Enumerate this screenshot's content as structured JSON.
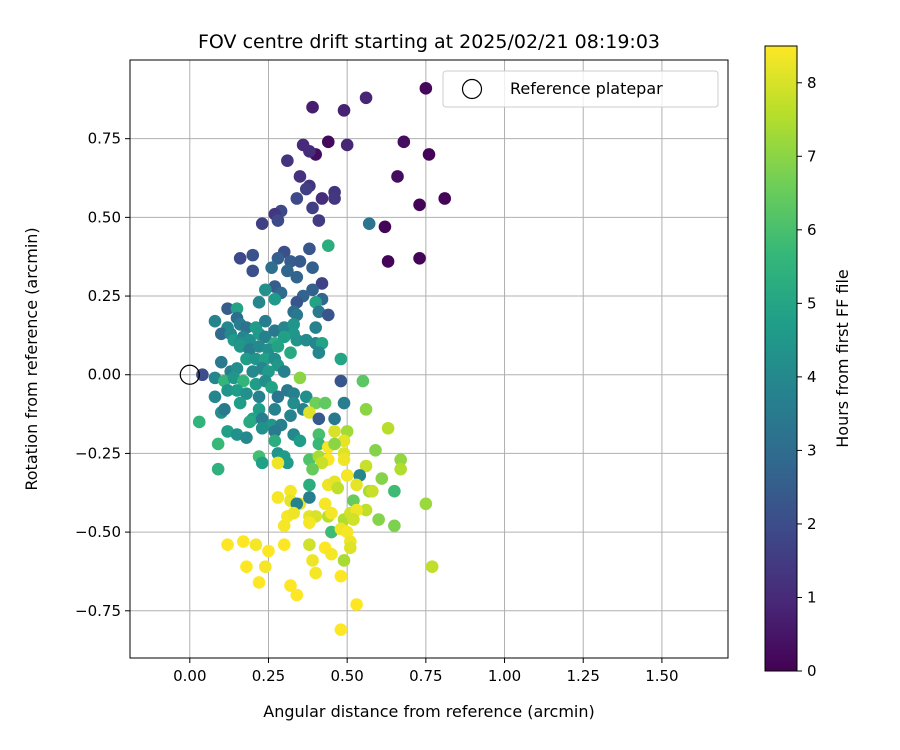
{
  "chart_data": {
    "type": "scatter",
    "title": "FOV centre drift starting at 2025/02/21 08:19:03",
    "xlabel": "Angular distance from reference (arcmin)",
    "ylabel": "Rotation from reference (arcmin)",
    "xlim": [
      -0.19,
      1.71
    ],
    "ylim": [
      -0.9,
      1.0
    ],
    "xticks": [
      0.0,
      0.25,
      0.5,
      0.75,
      1.0,
      1.25,
      1.5
    ],
    "xtick_labels": [
      "0.00",
      "0.25",
      "0.50",
      "0.75",
      "1.00",
      "1.25",
      "1.50"
    ],
    "yticks": [
      -0.75,
      -0.5,
      -0.25,
      0.0,
      0.25,
      0.5,
      0.75
    ],
    "ytick_labels": [
      "−0.75",
      "−0.50",
      "−0.25",
      "0.00",
      "0.25",
      "0.50",
      "0.75"
    ],
    "grid": true,
    "legend": {
      "placement": "top-right",
      "entries": [
        "Reference platepar"
      ]
    },
    "reference_point": {
      "x": 0.0,
      "y": 0.0
    },
    "colorbar": {
      "label": "Hours from first FF file",
      "range": [
        0,
        8.5
      ],
      "ticks": [
        0,
        1,
        2,
        3,
        4,
        5,
        6,
        7,
        8
      ],
      "tick_labels": [
        "0",
        "1",
        "2",
        "3",
        "4",
        "5",
        "6",
        "7",
        "8"
      ],
      "colormap": "viridis",
      "colors": [
        "#440154",
        "#482878",
        "#3e4989",
        "#31688e",
        "#26828e",
        "#1f9e89",
        "#35b779",
        "#6ece58",
        "#b5de2b",
        "#fde725"
      ]
    },
    "points": [
      {
        "x": 0.75,
        "y": 0.91,
        "c": 0.2
      },
      {
        "x": 0.73,
        "y": 0.54,
        "c": 0.1
      },
      {
        "x": 0.81,
        "y": 0.56,
        "c": 0.1
      },
      {
        "x": 0.76,
        "y": 0.7,
        "c": 0.1
      },
      {
        "x": 0.68,
        "y": 0.74,
        "c": 0.3
      },
      {
        "x": 0.66,
        "y": 0.63,
        "c": 0.3
      },
      {
        "x": 0.62,
        "y": 0.47,
        "c": 0.1
      },
      {
        "x": 0.63,
        "y": 0.36,
        "c": 0.1
      },
      {
        "x": 0.73,
        "y": 0.37,
        "c": 0.1
      },
      {
        "x": 0.44,
        "y": 0.74,
        "c": 0.2
      },
      {
        "x": 0.4,
        "y": 0.7,
        "c": 0.3
      },
      {
        "x": 0.39,
        "y": 0.85,
        "c": 0.7
      },
      {
        "x": 0.49,
        "y": 0.84,
        "c": 0.8
      },
      {
        "x": 0.56,
        "y": 0.88,
        "c": 0.9
      },
      {
        "x": 0.5,
        "y": 0.73,
        "c": 0.9
      },
      {
        "x": 0.36,
        "y": 0.73,
        "c": 1.0
      },
      {
        "x": 0.38,
        "y": 0.71,
        "c": 1.1
      },
      {
        "x": 0.31,
        "y": 0.68,
        "c": 1.3
      },
      {
        "x": 0.35,
        "y": 0.63,
        "c": 1.2
      },
      {
        "x": 0.38,
        "y": 0.6,
        "c": 1.3
      },
      {
        "x": 0.42,
        "y": 0.56,
        "c": 1.1
      },
      {
        "x": 0.37,
        "y": 0.59,
        "c": 1.6
      },
      {
        "x": 0.46,
        "y": 0.58,
        "c": 1.3
      },
      {
        "x": 0.46,
        "y": 0.56,
        "c": 1.4
      },
      {
        "x": 0.34,
        "y": 0.56,
        "c": 1.9
      },
      {
        "x": 0.39,
        "y": 0.53,
        "c": 1.6
      },
      {
        "x": 0.41,
        "y": 0.49,
        "c": 1.5
      },
      {
        "x": 0.29,
        "y": 0.52,
        "c": 1.9
      },
      {
        "x": 0.27,
        "y": 0.51,
        "c": 1.4
      },
      {
        "x": 0.23,
        "y": 0.48,
        "c": 1.6
      },
      {
        "x": 0.28,
        "y": 0.49,
        "c": 1.9
      },
      {
        "x": 0.57,
        "y": 0.48,
        "c": 3.3
      },
      {
        "x": 0.3,
        "y": 0.39,
        "c": 2.1
      },
      {
        "x": 0.38,
        "y": 0.4,
        "c": 2.3
      },
      {
        "x": 0.28,
        "y": 0.37,
        "c": 2.6
      },
      {
        "x": 0.32,
        "y": 0.36,
        "c": 2.5
      },
      {
        "x": 0.35,
        "y": 0.36,
        "c": 2.4
      },
      {
        "x": 0.44,
        "y": 0.41,
        "c": 5.3
      },
      {
        "x": 0.2,
        "y": 0.38,
        "c": 2.2
      },
      {
        "x": 0.16,
        "y": 0.37,
        "c": 1.9
      },
      {
        "x": 0.2,
        "y": 0.33,
        "c": 2.1
      },
      {
        "x": 0.26,
        "y": 0.34,
        "c": 3.1
      },
      {
        "x": 0.31,
        "y": 0.33,
        "c": 2.8
      },
      {
        "x": 0.39,
        "y": 0.34,
        "c": 2.6
      },
      {
        "x": 0.34,
        "y": 0.31,
        "c": 2.7
      },
      {
        "x": 0.42,
        "y": 0.29,
        "c": 1.7
      },
      {
        "x": 0.39,
        "y": 0.27,
        "c": 2.6
      },
      {
        "x": 0.27,
        "y": 0.28,
        "c": 2.5
      },
      {
        "x": 0.24,
        "y": 0.27,
        "c": 4.3
      },
      {
        "x": 0.29,
        "y": 0.26,
        "c": 2.9
      },
      {
        "x": 0.36,
        "y": 0.25,
        "c": 2.7
      },
      {
        "x": 0.42,
        "y": 0.24,
        "c": 2.8
      },
      {
        "x": 0.4,
        "y": 0.23,
        "c": 4.9
      },
      {
        "x": 0.34,
        "y": 0.23,
        "c": 2.3
      },
      {
        "x": 0.27,
        "y": 0.24,
        "c": 4.6
      },
      {
        "x": 0.22,
        "y": 0.23,
        "c": 3.9
      },
      {
        "x": 0.33,
        "y": 0.2,
        "c": 3.1
      },
      {
        "x": 0.41,
        "y": 0.2,
        "c": 3.5
      },
      {
        "x": 0.44,
        "y": 0.19,
        "c": 2.3
      },
      {
        "x": 0.34,
        "y": 0.19,
        "c": 3.4
      },
      {
        "x": 0.12,
        "y": 0.21,
        "c": 2.5
      },
      {
        "x": 0.15,
        "y": 0.21,
        "c": 4.9
      },
      {
        "x": 0.15,
        "y": 0.18,
        "c": 3.0
      },
      {
        "x": 0.08,
        "y": 0.17,
        "c": 3.8
      },
      {
        "x": 0.12,
        "y": 0.15,
        "c": 4.0
      },
      {
        "x": 0.16,
        "y": 0.16,
        "c": 3.6
      },
      {
        "x": 0.18,
        "y": 0.15,
        "c": 3.2
      },
      {
        "x": 0.21,
        "y": 0.15,
        "c": 4.7
      },
      {
        "x": 0.24,
        "y": 0.17,
        "c": 3.6
      },
      {
        "x": 0.27,
        "y": 0.14,
        "c": 3.4
      },
      {
        "x": 0.3,
        "y": 0.15,
        "c": 3.9
      },
      {
        "x": 0.33,
        "y": 0.16,
        "c": 4.4
      },
      {
        "x": 0.33,
        "y": 0.13,
        "c": 4.5
      },
      {
        "x": 0.4,
        "y": 0.15,
        "c": 3.8
      },
      {
        "x": 0.1,
        "y": 0.13,
        "c": 2.9
      },
      {
        "x": 0.13,
        "y": 0.13,
        "c": 4.0
      },
      {
        "x": 0.14,
        "y": 0.11,
        "c": 4.6
      },
      {
        "x": 0.17,
        "y": 0.12,
        "c": 3.9
      },
      {
        "x": 0.19,
        "y": 0.11,
        "c": 4.2
      },
      {
        "x": 0.22,
        "y": 0.13,
        "c": 4.6
      },
      {
        "x": 0.24,
        "y": 0.12,
        "c": 3.7
      },
      {
        "x": 0.27,
        "y": 0.1,
        "c": 5.3
      },
      {
        "x": 0.3,
        "y": 0.12,
        "c": 4.8
      },
      {
        "x": 0.34,
        "y": 0.11,
        "c": 4.4
      },
      {
        "x": 0.37,
        "y": 0.11,
        "c": 4.1
      },
      {
        "x": 0.4,
        "y": 0.1,
        "c": 3.9
      },
      {
        "x": 0.42,
        "y": 0.1,
        "c": 4.9
      },
      {
        "x": 0.16,
        "y": 0.1,
        "c": 4.3
      },
      {
        "x": 0.16,
        "y": 0.09,
        "c": 4.5
      },
      {
        "x": 0.19,
        "y": 0.08,
        "c": 3.6
      },
      {
        "x": 0.22,
        "y": 0.09,
        "c": 4.0
      },
      {
        "x": 0.25,
        "y": 0.08,
        "c": 4.2
      },
      {
        "x": 0.28,
        "y": 0.09,
        "c": 4.9
      },
      {
        "x": 0.32,
        "y": 0.07,
        "c": 5.1
      },
      {
        "x": 0.41,
        "y": 0.07,
        "c": 3.9
      },
      {
        "x": 0.18,
        "y": 0.05,
        "c": 4.7
      },
      {
        "x": 0.21,
        "y": 0.05,
        "c": 4.4
      },
      {
        "x": 0.24,
        "y": 0.05,
        "c": 4.8
      },
      {
        "x": 0.27,
        "y": 0.05,
        "c": 4.1
      },
      {
        "x": 0.28,
        "y": 0.03,
        "c": 4.5
      },
      {
        "x": 0.48,
        "y": 0.05,
        "c": 5.0
      },
      {
        "x": 0.1,
        "y": 0.04,
        "c": 3.5
      },
      {
        "x": 0.13,
        "y": 0.01,
        "c": 3.7
      },
      {
        "x": 0.15,
        "y": 0.02,
        "c": 4.2
      },
      {
        "x": 0.2,
        "y": 0.01,
        "c": 4.0
      },
      {
        "x": 0.23,
        "y": 0.02,
        "c": 3.9
      },
      {
        "x": 0.25,
        "y": 0.01,
        "c": 4.6
      },
      {
        "x": 0.3,
        "y": 0.01,
        "c": 3.7
      },
      {
        "x": 0.04,
        "y": 0.0,
        "c": 2.0
      },
      {
        "x": 0.08,
        "y": -0.01,
        "c": 3.9
      },
      {
        "x": 0.11,
        "y": -0.02,
        "c": 5.6
      },
      {
        "x": 0.14,
        "y": -0.01,
        "c": 4.5
      },
      {
        "x": 0.17,
        "y": -0.02,
        "c": 5.6
      },
      {
        "x": 0.21,
        "y": -0.03,
        "c": 4.7
      },
      {
        "x": 0.24,
        "y": -0.02,
        "c": 4.2
      },
      {
        "x": 0.26,
        "y": -0.04,
        "c": 4.9
      },
      {
        "x": 0.35,
        "y": -0.01,
        "c": 7.0
      },
      {
        "x": 0.48,
        "y": -0.02,
        "c": 2.3
      },
      {
        "x": 0.55,
        "y": -0.02,
        "c": 6.3
      },
      {
        "x": 0.08,
        "y": -0.07,
        "c": 3.9
      },
      {
        "x": 0.12,
        "y": -0.05,
        "c": 4.4
      },
      {
        "x": 0.15,
        "y": -0.05,
        "c": 4.7
      },
      {
        "x": 0.18,
        "y": -0.06,
        "c": 4.3
      },
      {
        "x": 0.22,
        "y": -0.07,
        "c": 3.8
      },
      {
        "x": 0.28,
        "y": -0.07,
        "c": 3.3
      },
      {
        "x": 0.31,
        "y": -0.05,
        "c": 3.4
      },
      {
        "x": 0.33,
        "y": -0.06,
        "c": 3.7
      },
      {
        "x": 0.37,
        "y": -0.07,
        "c": 4.2
      },
      {
        "x": 0.1,
        "y": -0.12,
        "c": 4.3
      },
      {
        "x": 0.16,
        "y": -0.09,
        "c": 4.7
      },
      {
        "x": 0.11,
        "y": -0.11,
        "c": 3.5
      },
      {
        "x": 0.22,
        "y": -0.11,
        "c": 4.7
      },
      {
        "x": 0.27,
        "y": -0.11,
        "c": 3.8
      },
      {
        "x": 0.33,
        "y": -0.09,
        "c": 4.1
      },
      {
        "x": 0.36,
        "y": -0.11,
        "c": 3.8
      },
      {
        "x": 0.4,
        "y": -0.09,
        "c": 6.6
      },
      {
        "x": 0.43,
        "y": -0.09,
        "c": 6.4
      },
      {
        "x": 0.49,
        "y": -0.09,
        "c": 3.6
      },
      {
        "x": 0.56,
        "y": -0.11,
        "c": 7.0
      },
      {
        "x": 0.38,
        "y": -0.12,
        "c": 8.1
      },
      {
        "x": 0.2,
        "y": -0.14,
        "c": 4.9
      },
      {
        "x": 0.19,
        "y": -0.15,
        "c": 5.1
      },
      {
        "x": 0.23,
        "y": -0.14,
        "c": 3.6
      },
      {
        "x": 0.26,
        "y": -0.16,
        "c": 4.5
      },
      {
        "x": 0.29,
        "y": -0.16,
        "c": 3.7
      },
      {
        "x": 0.32,
        "y": -0.13,
        "c": 3.8
      },
      {
        "x": 0.41,
        "y": -0.14,
        "c": 2.4
      },
      {
        "x": 0.46,
        "y": -0.14,
        "c": 3.4
      },
      {
        "x": 0.03,
        "y": -0.15,
        "c": 5.5
      },
      {
        "x": 0.12,
        "y": -0.18,
        "c": 4.8
      },
      {
        "x": 0.15,
        "y": -0.19,
        "c": 4.3
      },
      {
        "x": 0.18,
        "y": -0.2,
        "c": 4.0
      },
      {
        "x": 0.23,
        "y": -0.17,
        "c": 4.3
      },
      {
        "x": 0.27,
        "y": -0.18,
        "c": 3.5
      },
      {
        "x": 0.33,
        "y": -0.19,
        "c": 4.0
      },
      {
        "x": 0.41,
        "y": -0.19,
        "c": 6.0
      },
      {
        "x": 0.46,
        "y": -0.18,
        "c": 8.0
      },
      {
        "x": 0.5,
        "y": -0.18,
        "c": 7.3
      },
      {
        "x": 0.63,
        "y": -0.17,
        "c": 7.6
      },
      {
        "x": 0.09,
        "y": -0.22,
        "c": 5.7
      },
      {
        "x": 0.27,
        "y": -0.21,
        "c": 5.3
      },
      {
        "x": 0.35,
        "y": -0.21,
        "c": 4.7
      },
      {
        "x": 0.41,
        "y": -0.22,
        "c": 5.7
      },
      {
        "x": 0.49,
        "y": -0.21,
        "c": 8.2
      },
      {
        "x": 0.44,
        "y": -0.23,
        "c": 8.4
      },
      {
        "x": 0.46,
        "y": -0.22,
        "c": 7.0
      },
      {
        "x": 0.59,
        "y": -0.24,
        "c": 6.9
      },
      {
        "x": 0.22,
        "y": -0.26,
        "c": 5.9
      },
      {
        "x": 0.23,
        "y": -0.28,
        "c": 4.8
      },
      {
        "x": 0.28,
        "y": -0.25,
        "c": 4.4
      },
      {
        "x": 0.3,
        "y": -0.26,
        "c": 4.7
      },
      {
        "x": 0.38,
        "y": -0.27,
        "c": 6.1
      },
      {
        "x": 0.41,
        "y": -0.26,
        "c": 7.4
      },
      {
        "x": 0.44,
        "y": -0.27,
        "c": 8.5
      },
      {
        "x": 0.49,
        "y": -0.25,
        "c": 8.1
      },
      {
        "x": 0.49,
        "y": -0.27,
        "c": 8.3
      },
      {
        "x": 0.31,
        "y": -0.28,
        "c": 4.6
      },
      {
        "x": 0.28,
        "y": -0.28,
        "c": 8.3
      },
      {
        "x": 0.42,
        "y": -0.28,
        "c": 7.8
      },
      {
        "x": 0.56,
        "y": -0.29,
        "c": 7.8
      },
      {
        "x": 0.67,
        "y": -0.27,
        "c": 7.1
      },
      {
        "x": 0.67,
        "y": -0.3,
        "c": 7.5
      },
      {
        "x": 0.09,
        "y": -0.3,
        "c": 5.4
      },
      {
        "x": 0.39,
        "y": -0.3,
        "c": 6.5
      },
      {
        "x": 0.5,
        "y": -0.32,
        "c": 8.4
      },
      {
        "x": 0.54,
        "y": -0.32,
        "c": 3.9
      },
      {
        "x": 0.61,
        "y": -0.33,
        "c": 6.9
      },
      {
        "x": 0.44,
        "y": -0.35,
        "c": 8.3
      },
      {
        "x": 0.38,
        "y": -0.35,
        "c": 5.3
      },
      {
        "x": 0.46,
        "y": -0.34,
        "c": 8.2
      },
      {
        "x": 0.47,
        "y": -0.36,
        "c": 7.7
      },
      {
        "x": 0.53,
        "y": -0.35,
        "c": 8.2
      },
      {
        "x": 0.57,
        "y": -0.37,
        "c": 7.4
      },
      {
        "x": 0.58,
        "y": -0.37,
        "c": 7.8
      },
      {
        "x": 0.65,
        "y": -0.37,
        "c": 5.8
      },
      {
        "x": 0.32,
        "y": -0.37,
        "c": 8.4
      },
      {
        "x": 0.28,
        "y": -0.39,
        "c": 8.4
      },
      {
        "x": 0.32,
        "y": -0.4,
        "c": 8.2
      },
      {
        "x": 0.35,
        "y": -0.41,
        "c": 8.3
      },
      {
        "x": 0.34,
        "y": -0.41,
        "c": 3.8
      },
      {
        "x": 0.38,
        "y": -0.39,
        "c": 3.6
      },
      {
        "x": 0.43,
        "y": -0.41,
        "c": 8.4
      },
      {
        "x": 0.52,
        "y": -0.4,
        "c": 6.5
      },
      {
        "x": 0.56,
        "y": -0.43,
        "c": 7.7
      },
      {
        "x": 0.75,
        "y": -0.41,
        "c": 7.2
      },
      {
        "x": 0.31,
        "y": -0.45,
        "c": 8.4
      },
      {
        "x": 0.33,
        "y": -0.44,
        "c": 8.3
      },
      {
        "x": 0.38,
        "y": -0.45,
        "c": 8.2
      },
      {
        "x": 0.4,
        "y": -0.45,
        "c": 8.0
      },
      {
        "x": 0.44,
        "y": -0.45,
        "c": 7.6
      },
      {
        "x": 0.45,
        "y": -0.44,
        "c": 8.4
      },
      {
        "x": 0.49,
        "y": -0.46,
        "c": 7.5
      },
      {
        "x": 0.51,
        "y": -0.44,
        "c": 7.9
      },
      {
        "x": 0.53,
        "y": -0.43,
        "c": 8.3
      },
      {
        "x": 0.3,
        "y": -0.48,
        "c": 8.4
      },
      {
        "x": 0.38,
        "y": -0.47,
        "c": 8.4
      },
      {
        "x": 0.45,
        "y": -0.5,
        "c": 5.8
      },
      {
        "x": 0.48,
        "y": -0.49,
        "c": 8.3
      },
      {
        "x": 0.5,
        "y": -0.5,
        "c": 8.4
      },
      {
        "x": 0.52,
        "y": -0.46,
        "c": 7.9
      },
      {
        "x": 0.6,
        "y": -0.46,
        "c": 6.9
      },
      {
        "x": 0.65,
        "y": -0.48,
        "c": 6.8
      },
      {
        "x": 0.51,
        "y": -0.53,
        "c": 8.3
      },
      {
        "x": 0.12,
        "y": -0.54,
        "c": 8.5
      },
      {
        "x": 0.17,
        "y": -0.53,
        "c": 8.5
      },
      {
        "x": 0.21,
        "y": -0.54,
        "c": 8.4
      },
      {
        "x": 0.3,
        "y": -0.54,
        "c": 8.5
      },
      {
        "x": 0.38,
        "y": -0.54,
        "c": 7.9
      },
      {
        "x": 0.43,
        "y": -0.55,
        "c": 8.5
      },
      {
        "x": 0.51,
        "y": -0.55,
        "c": 8.1
      },
      {
        "x": 0.25,
        "y": -0.56,
        "c": 8.5
      },
      {
        "x": 0.45,
        "y": -0.57,
        "c": 8.4
      },
      {
        "x": 0.39,
        "y": -0.59,
        "c": 8.3
      },
      {
        "x": 0.49,
        "y": -0.59,
        "c": 7.4
      },
      {
        "x": 0.18,
        "y": -0.61,
        "c": 8.5
      },
      {
        "x": 0.24,
        "y": -0.61,
        "c": 8.4
      },
      {
        "x": 0.4,
        "y": -0.63,
        "c": 8.4
      },
      {
        "x": 0.48,
        "y": -0.64,
        "c": 8.5
      },
      {
        "x": 0.77,
        "y": -0.61,
        "c": 7.7
      },
      {
        "x": 0.22,
        "y": -0.66,
        "c": 8.5
      },
      {
        "x": 0.32,
        "y": -0.67,
        "c": 8.5
      },
      {
        "x": 0.34,
        "y": -0.7,
        "c": 8.5
      },
      {
        "x": 0.53,
        "y": -0.73,
        "c": 8.5
      },
      {
        "x": 0.48,
        "y": -0.81,
        "c": 8.5
      }
    ]
  }
}
